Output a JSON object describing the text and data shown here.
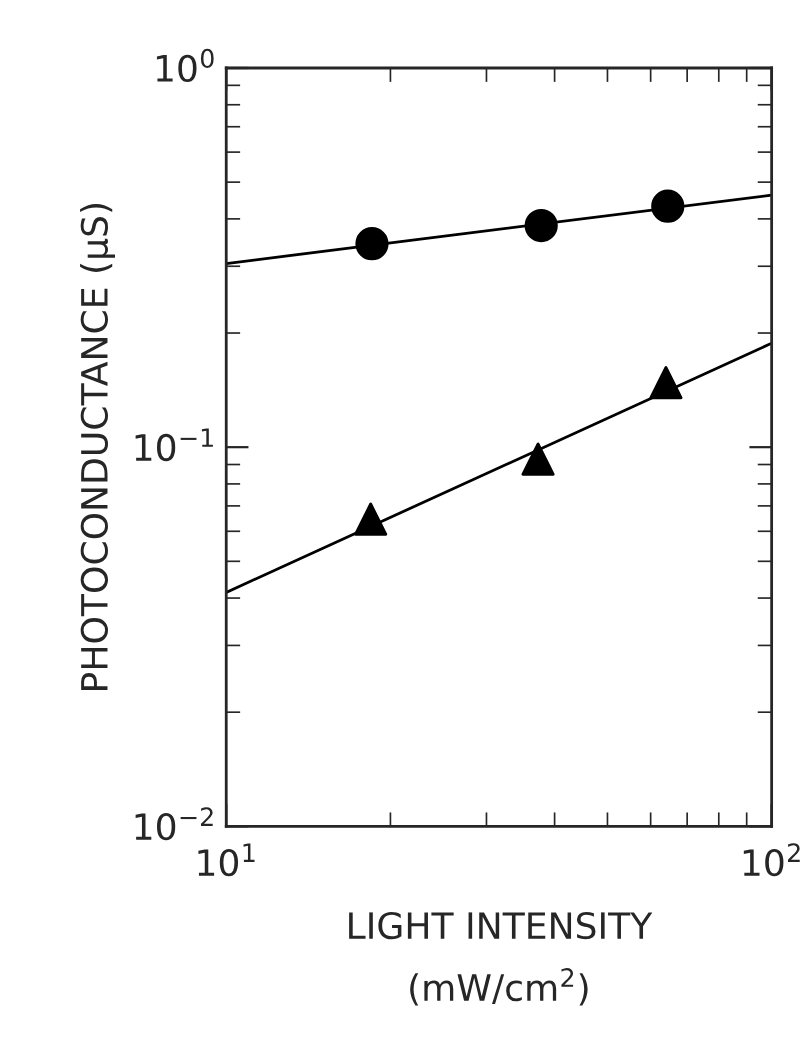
{
  "chart_data": {
    "type": "scatter",
    "xlabel": "LIGHT INTENSITY\n(mW/cm$^{2}$)",
    "ylabel": "PHOTOCONDUCTANCE (μS)",
    "log": "xy",
    "xlim": [
      10,
      100
    ],
    "xticks": [
      {
        "value": 10,
        "label": "10$^{1}$"
      },
      {
        "value": 100,
        "label": "10$^{2}$"
      }
    ],
    "ylim": [
      0.01,
      1
    ],
    "yticks": [
      {
        "value": 0.01,
        "label": "10$^{−2}$"
      },
      {
        "value": 0.1,
        "label": "10$^{−1}$"
      },
      {
        "value": 1,
        "label": "10$^{0}$"
      }
    ],
    "grid": false,
    "legend": false,
    "series": [
      {
        "marker": "circle",
        "color": "#000000",
        "x": [
          18.5,
          37.8,
          64.5
        ],
        "values": [
          0.344,
          0.384,
          0.432
        ]
      },
      {
        "type": "line",
        "marker": "none",
        "line_style": "solid",
        "color": "#000000",
        "x": [
          10,
          100
        ],
        "values": [
          0.305,
          0.462
        ]
      },
      {
        "marker": "triangle",
        "color": "#000000",
        "x": [
          18.4,
          37.3,
          64
        ],
        "values": [
          0.0646,
          0.093,
          0.148
        ]
      },
      {
        "type": "line",
        "marker": "none",
        "line_style": "solid",
        "color": "#000000",
        "x": [
          10,
          100
        ],
        "values": [
          0.0414,
          0.188
        ]
      }
    ]
  }
}
